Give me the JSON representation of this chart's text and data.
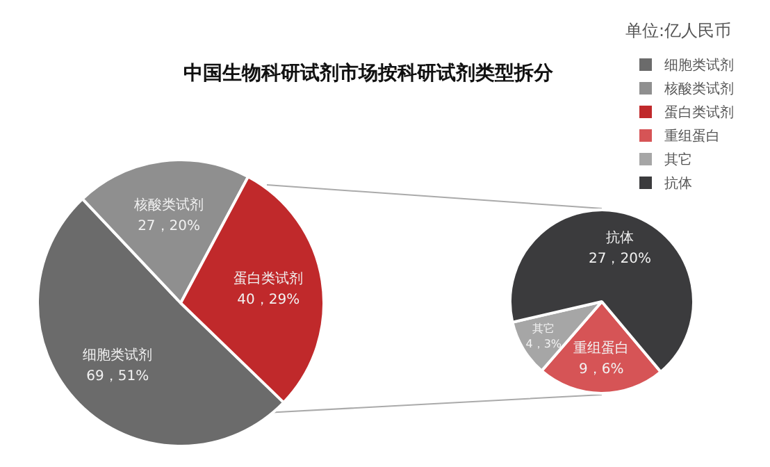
{
  "chart_data": [
    {
      "type": "pie",
      "title": "中国生物科研试剂市场按科研试剂类型拆分",
      "annotations": [
        "单位:亿人民币"
      ],
      "legend": "top right",
      "categories": [
        "细胞类试剂",
        "核酸类试剂",
        "蛋白类试剂"
      ],
      "values": [
        69,
        27,
        40
      ],
      "value_labels": [
        "69，51%",
        "27，20%",
        "40，29%"
      ],
      "colors": [
        "#6b6b6b",
        "#8f8f8f",
        "#c0292b"
      ]
    },
    {
      "type": "pie",
      "legend": "top right",
      "categories": [
        "重组蛋白",
        "其它",
        "抗体"
      ],
      "values": [
        9,
        4,
        27
      ],
      "value_labels": [
        "9，6%",
        "4，3%",
        "27，20%"
      ],
      "colors": [
        "#d65456",
        "#a6a6a6",
        "#3b3b3d"
      ]
    }
  ]
}
